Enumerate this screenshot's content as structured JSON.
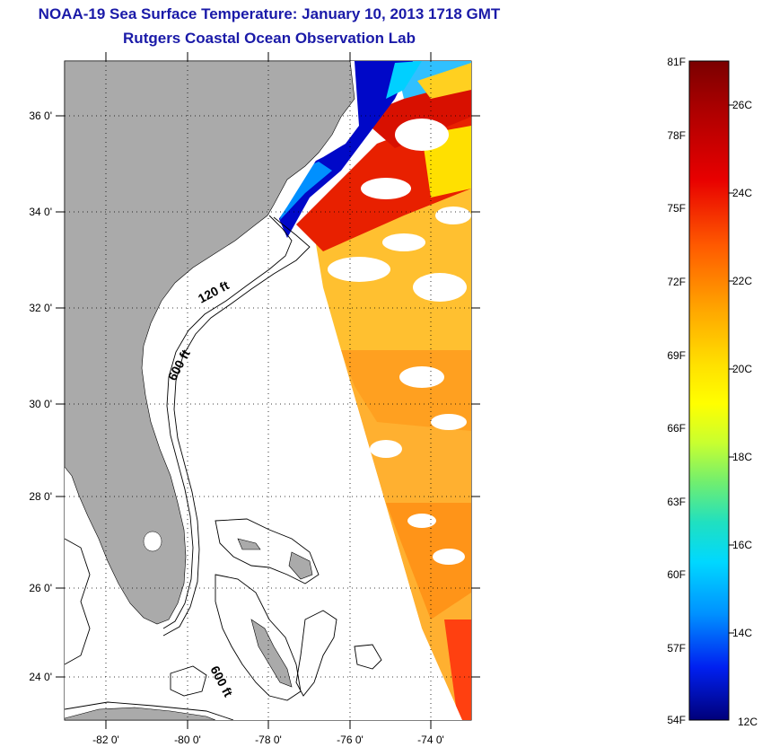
{
  "header": {
    "title_line1": "NOAA-19 Sea Surface Temperature:  January 10, 2013 1718 GMT",
    "title_line2": "Rutgers Coastal Ocean Observation Lab"
  },
  "map": {
    "lon_range": [
      -83,
      -73
    ],
    "lat_range": [
      23,
      37
    ],
    "lon_tick_labels": [
      "-82 0'",
      "-80 0'",
      "-78 0'",
      "-76 0'",
      "-74 0'"
    ],
    "lat_tick_labels": [
      "36 0'",
      "34 0'",
      "32 0'",
      "30 0'",
      "28 0'",
      "26 0'",
      "24 0'"
    ],
    "contour_labels": [
      "120 ft",
      "600 ft",
      "600 ft"
    ],
    "land_color": "#aaaaaa",
    "background_color": "#ffffff"
  },
  "colorbar": {
    "fahrenheit_labels": [
      "81F",
      "78F",
      "75F",
      "72F",
      "69F",
      "66F",
      "63F",
      "60F",
      "57F",
      "54F"
    ],
    "celsius_labels": [
      "26C",
      "24C",
      "22C",
      "20C",
      "18C",
      "16C",
      "14C",
      "12C"
    ],
    "colors": [
      "#800000",
      "#d40000",
      "#ff3000",
      "#ff8c00",
      "#ffd700",
      "#ffff00",
      "#a0e040",
      "#30d0a0",
      "#00e0ff",
      "#0090ff",
      "#0030ff",
      "#0000c0",
      "#000080"
    ]
  }
}
